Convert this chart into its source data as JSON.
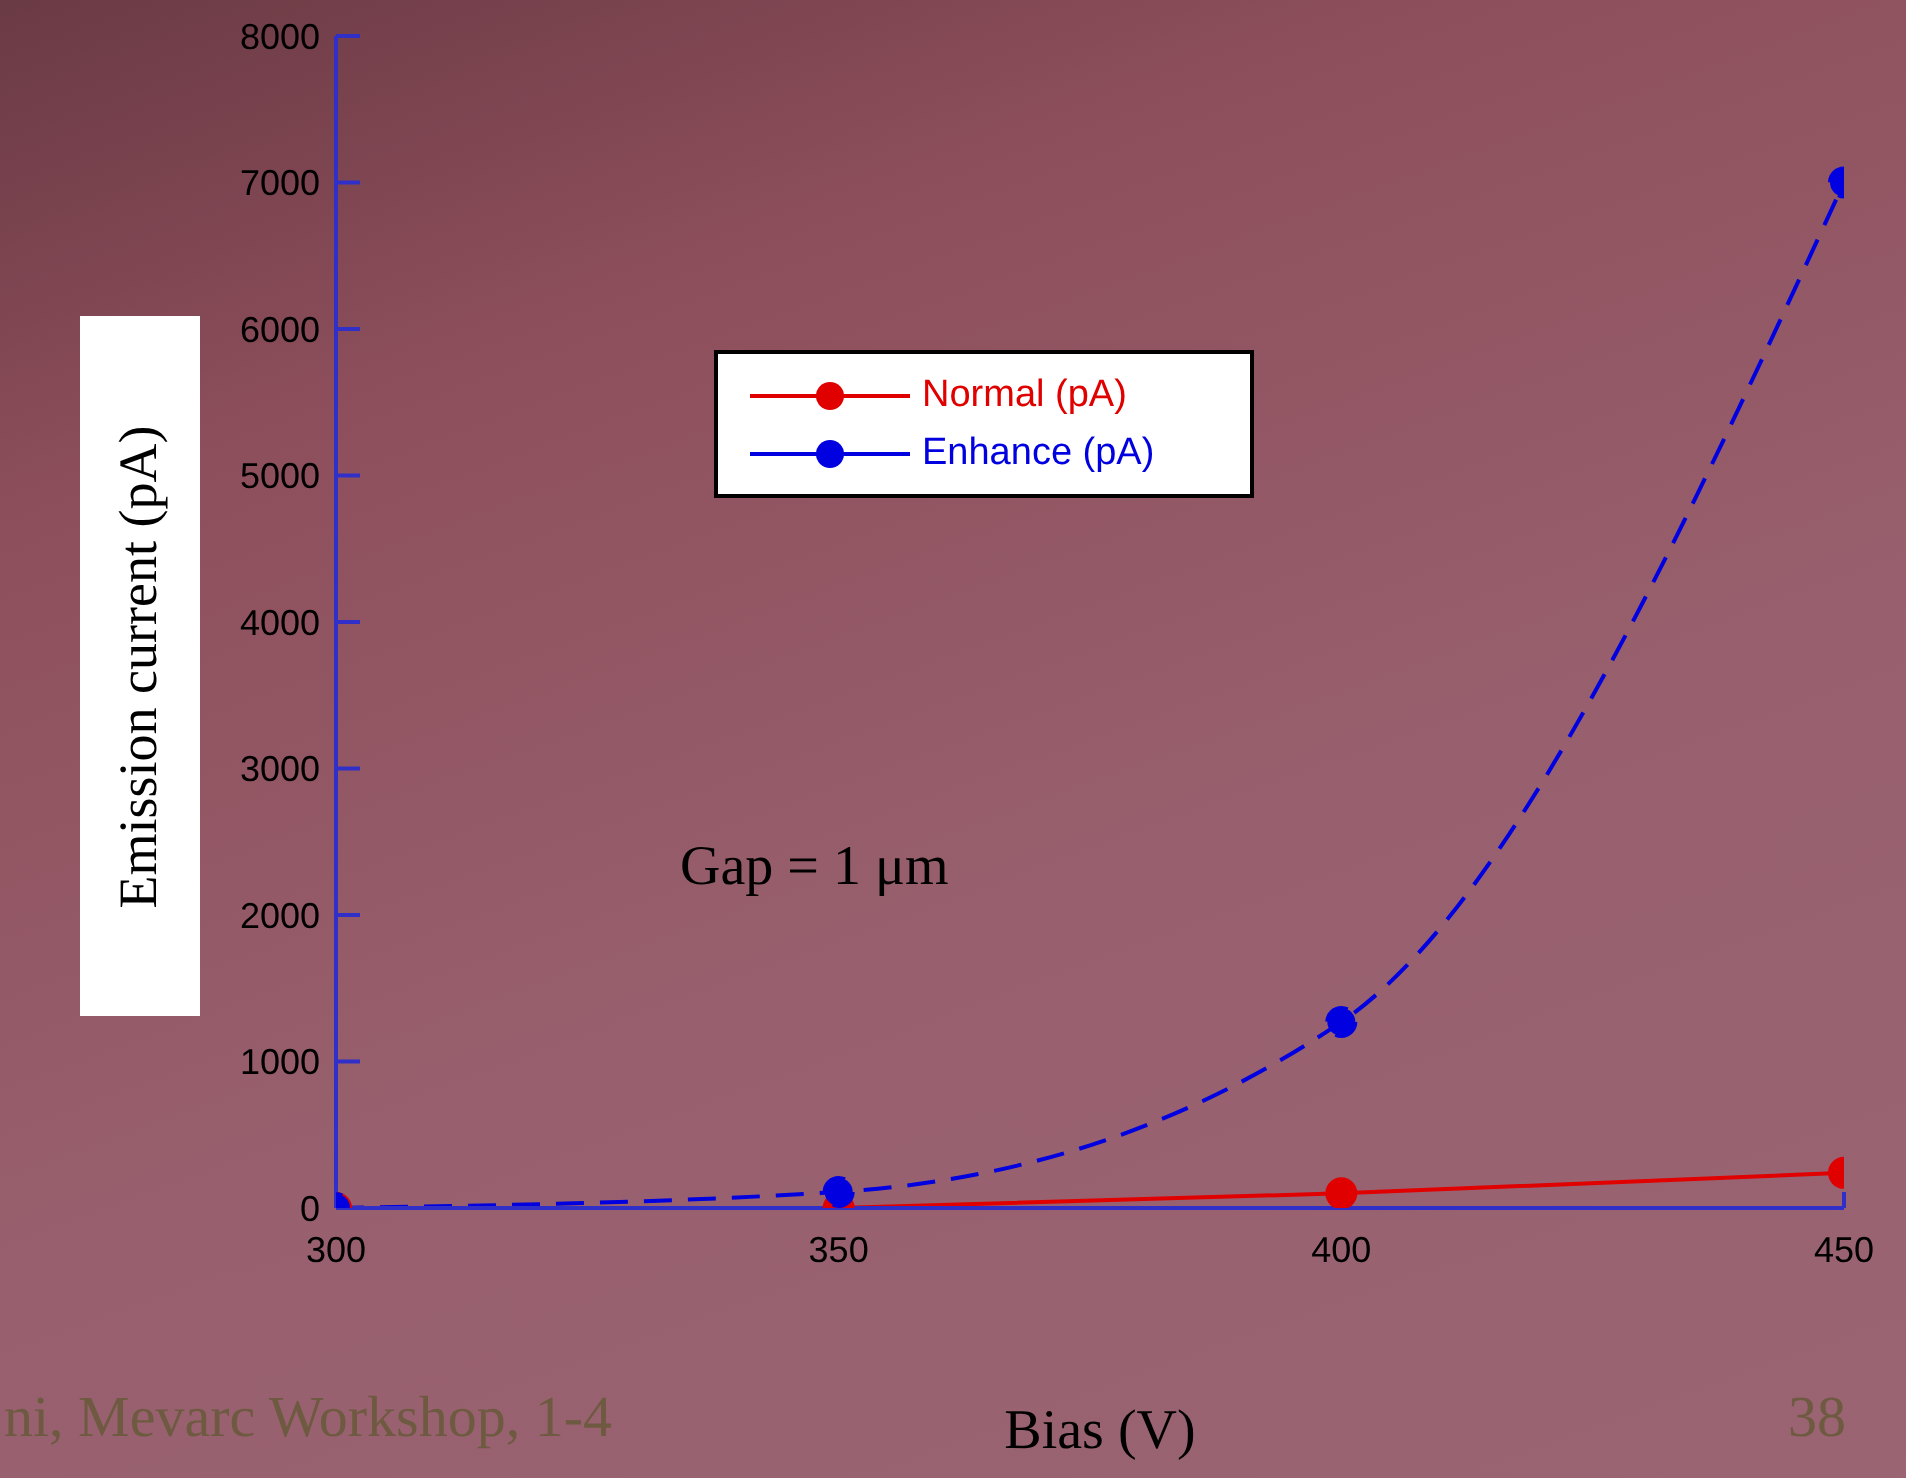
{
  "chart_data": {
    "type": "line",
    "xlabel": "Bias (V)",
    "ylabel": "Emission current (pA)",
    "x": [
      300,
      350,
      400,
      450
    ],
    "series": [
      {
        "name": "Normal (pA)",
        "color": "#e00000",
        "values": [
          0,
          0,
          100,
          240
        ],
        "line_style": "solid"
      },
      {
        "name": "Enhance (pA)",
        "color": "#0000e0",
        "values": [
          0,
          110,
          1270,
          7000
        ],
        "line_style": "dashed"
      }
    ],
    "xlim": [
      300,
      450
    ],
    "xticks": [
      300,
      350,
      400,
      450
    ],
    "ylim": [
      0,
      8000
    ],
    "yticks": [
      0,
      1000,
      2000,
      3000,
      4000,
      5000,
      6000,
      7000,
      8000
    ],
    "grid": false,
    "legend": "top",
    "marker": "circle",
    "annotations": [
      "Gap = 1 μm",
      "ni, Mevarc Workshop, 1-4",
      "38"
    ]
  }
}
